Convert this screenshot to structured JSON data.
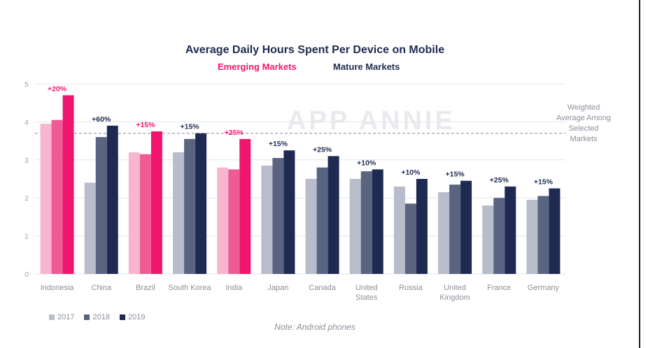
{
  "title": "Average Daily Hours Spent Per Device on Mobile",
  "subtitle_emerging": "Emerging Markets",
  "subtitle_mature": "Mature Markets",
  "reference_label": "Weighted Average Among Selected Markets",
  "watermark": "APP ANNIE",
  "note": "Note: Android phones",
  "colors": {
    "title": "#1f2a52",
    "emerging_accent": "#f0166e",
    "emerging": [
      "#f8b5cf",
      "#ef5b94",
      "#f0166e"
    ],
    "mature": [
      "#b8bccb",
      "#5a6380",
      "#1f2a52"
    ]
  },
  "chart_data": {
    "type": "bar",
    "title": "Average Daily Hours Spent Per Device on Mobile",
    "xlabel": "",
    "ylabel": "",
    "ylim": [
      0,
      5
    ],
    "yticks": [
      0,
      1,
      2,
      3,
      4,
      5
    ],
    "grid": true,
    "legend_position": "bottom-left",
    "categories": [
      "Indonesia",
      "China",
      "Brazil",
      "South Korea",
      "India",
      "Japan",
      "Canada",
      "United States",
      "Russia",
      "United Kingdom",
      "France",
      "Germany"
    ],
    "category_labels": [
      [
        "Indonesia"
      ],
      [
        "China"
      ],
      [
        "Brazil"
      ],
      [
        "South Korea"
      ],
      [
        "India"
      ],
      [
        "Japan"
      ],
      [
        "Canada"
      ],
      [
        "United",
        "States"
      ],
      [
        "Russia"
      ],
      [
        "United",
        "Kingdom"
      ],
      [
        "France"
      ],
      [
        "Germany"
      ]
    ],
    "market_group": [
      "emerging",
      "mature",
      "emerging",
      "mature",
      "emerging",
      "mature",
      "mature",
      "mature",
      "mature",
      "mature",
      "mature",
      "mature"
    ],
    "series": [
      {
        "name": "2017",
        "values": [
          3.95,
          2.4,
          3.2,
          3.2,
          2.8,
          2.85,
          2.5,
          2.5,
          2.3,
          2.15,
          1.8,
          1.95
        ]
      },
      {
        "name": "2018",
        "values": [
          4.05,
          3.6,
          3.15,
          3.55,
          2.75,
          3.05,
          2.8,
          2.7,
          1.85,
          2.35,
          2.0,
          2.05
        ]
      },
      {
        "name": "2019",
        "values": [
          4.7,
          3.9,
          3.75,
          3.7,
          3.55,
          3.25,
          3.1,
          2.75,
          2.5,
          2.45,
          2.3,
          2.25
        ]
      }
    ],
    "growth_labels": [
      "+20%",
      "+60%",
      "+15%",
      "+15%",
      "+25%",
      "+15%",
      "+25%",
      "+10%",
      "+10%",
      "+15%",
      "+25%",
      "+15%"
    ],
    "reference_line": {
      "value": 3.7,
      "label": "Weighted Average Among Selected Markets"
    }
  }
}
